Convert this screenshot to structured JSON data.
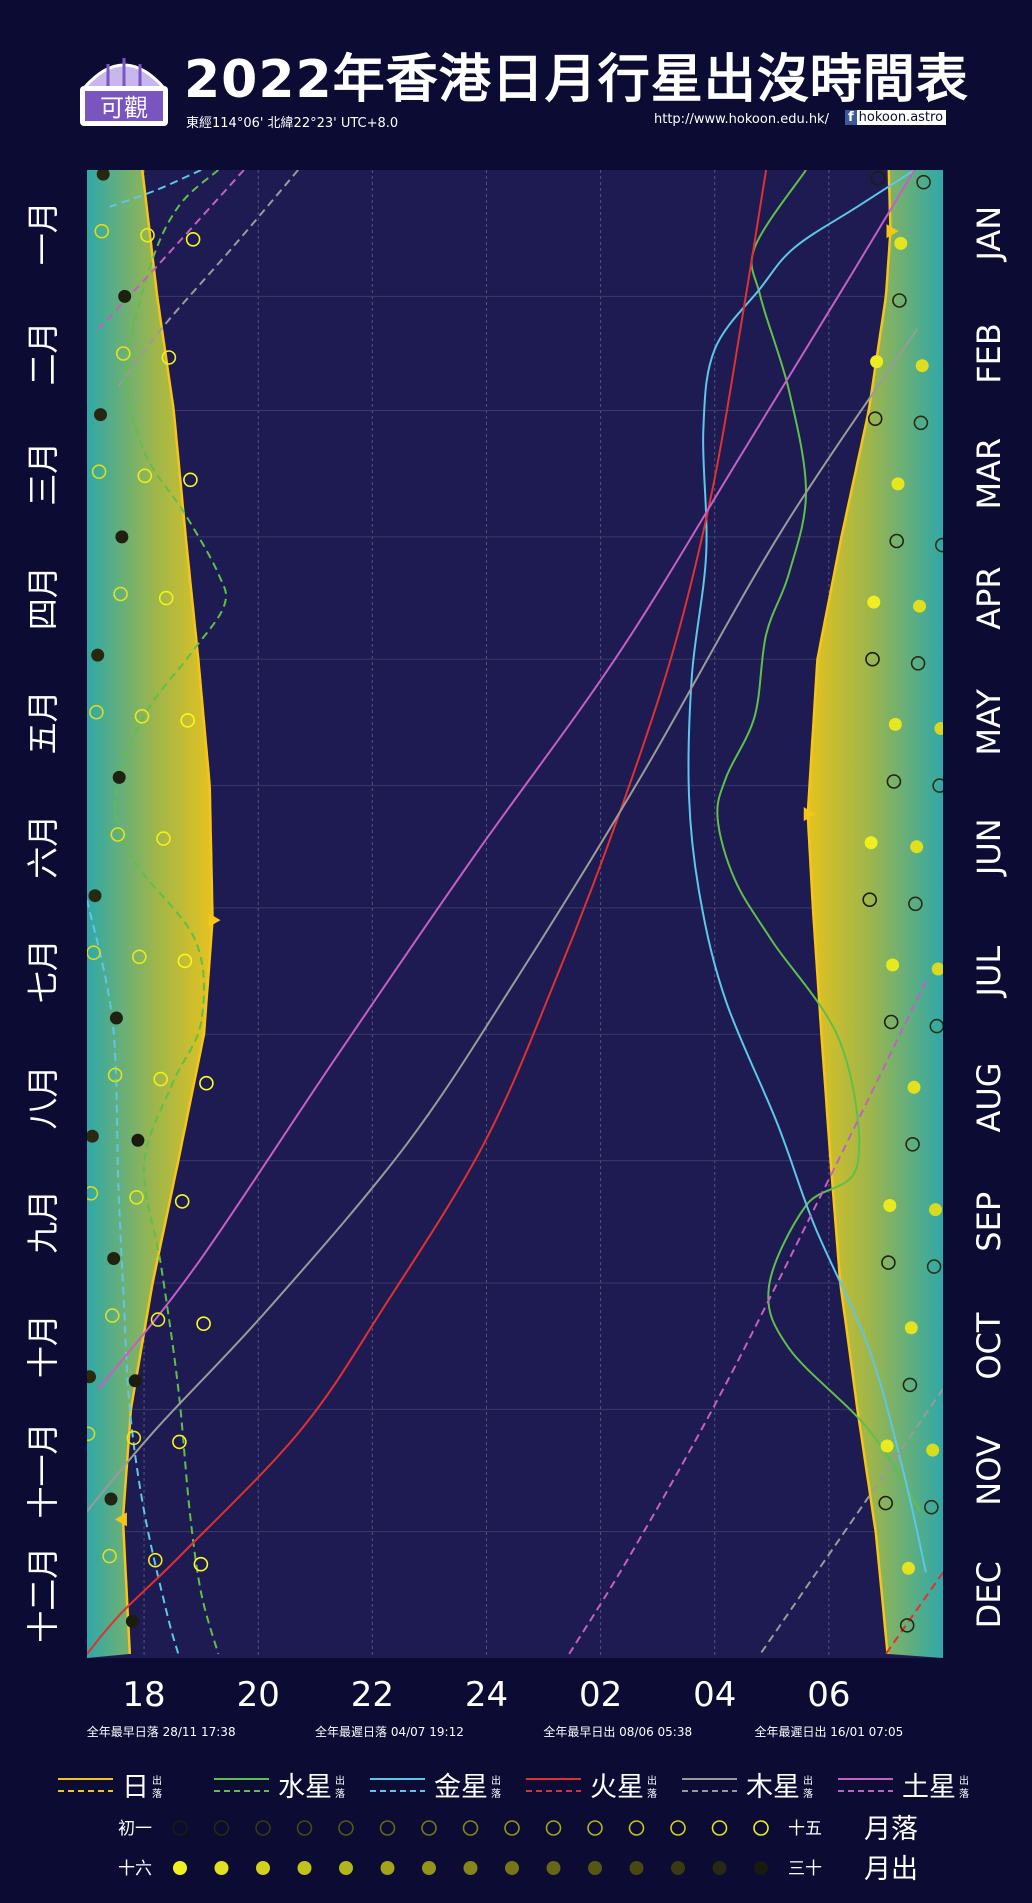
{
  "header": {
    "title": "2022年香港日月行星出沒時間表",
    "coords": "東經114°06'  北緯22°23'  UTC+8.0",
    "url": "http://www.hokoon.edu.hk/",
    "facebook": "hokoon.astro",
    "logo_text": "可觀"
  },
  "colors": {
    "background": "#0b0b33",
    "night_area": "#1d1b52",
    "sun": "#f5c518",
    "mercury": "#5fbf4a",
    "venus": "#5ec6e6",
    "mars": "#e03030",
    "jupiter": "#9a9a9a",
    "saturn": "#c45fc4",
    "moon_bright": "#f0f020",
    "moon_dark": "#1a1a10"
  },
  "chart_data": {
    "type": "line",
    "title": "2022年香港日月行星出沒時間表",
    "x_ticks": [
      "18",
      "20",
      "22",
      "24",
      "02",
      "04",
      "06"
    ],
    "x_tick_hours": [
      18,
      20,
      22,
      24,
      26,
      28,
      30
    ],
    "xlim_hours": [
      17,
      32
    ],
    "months_zh": [
      "一月",
      "二月",
      "三月",
      "四月",
      "五月",
      "六月",
      "七月",
      "八月",
      "九月",
      "十月",
      "十一月",
      "十二月"
    ],
    "months_en": [
      "JAN",
      "FEB",
      "MAR",
      "APR",
      "MAY",
      "JUN",
      "JUL",
      "AUG",
      "SEP",
      "OCT",
      "NOV",
      "DEC"
    ],
    "month_days": [
      31,
      28,
      31,
      30,
      31,
      30,
      31,
      31,
      30,
      31,
      30,
      31
    ],
    "extremes": [
      "全年最早日落 28/11 17:38",
      "全年最遲日落 04/07 19:12",
      "全年最早日出 08/06 05:38",
      "全年最遲日出 16/01 07:05"
    ],
    "sunset": [
      [
        1,
        17.97
      ],
      [
        32,
        18.23
      ],
      [
        60,
        18.52
      ],
      [
        91,
        18.73
      ],
      [
        121,
        18.95
      ],
      [
        152,
        19.15
      ],
      [
        185,
        19.2
      ],
      [
        213,
        19.05
      ],
      [
        244,
        18.6
      ],
      [
        274,
        18.15
      ],
      [
        305,
        17.77
      ],
      [
        332,
        17.63
      ],
      [
        365,
        17.75
      ]
    ],
    "sunrise": [
      [
        1,
        31.05
      ],
      [
        16,
        31.08
      ],
      [
        32,
        31.0
      ],
      [
        60,
        30.7
      ],
      [
        91,
        30.22
      ],
      [
        121,
        29.8
      ],
      [
        159,
        29.63
      ],
      [
        182,
        29.72
      ],
      [
        213,
        29.87
      ],
      [
        244,
        30.03
      ],
      [
        274,
        30.2
      ],
      [
        305,
        30.5
      ],
      [
        335,
        30.82
      ],
      [
        365,
        31.03
      ]
    ],
    "mercury_rise": [
      [
        1,
        29.6
      ],
      [
        20,
        28.7
      ],
      [
        32,
        28.8
      ],
      [
        55,
        29.3
      ],
      [
        80,
        29.6
      ],
      [
        100,
        29.3
      ],
      [
        115,
        28.9
      ],
      [
        135,
        28.7
      ],
      [
        150,
        28.2
      ],
      [
        160,
        28.05
      ],
      [
        175,
        28.35
      ],
      [
        190,
        29.0
      ],
      [
        215,
        30.2
      ],
      [
        245,
        30.5
      ],
      [
        255,
        29.6
      ],
      [
        275,
        28.95
      ],
      [
        290,
        29.3
      ],
      [
        310,
        30.7
      ],
      [
        330,
        31.6
      ]
    ],
    "mercury_set": [
      [
        1,
        19.3
      ],
      [
        10,
        18.6
      ],
      [
        25,
        18.1
      ],
      [
        50,
        17.7
      ],
      [
        70,
        18.0
      ],
      [
        85,
        18.7
      ],
      [
        100,
        19.3
      ],
      [
        108,
        19.4
      ],
      [
        120,
        18.8
      ],
      [
        135,
        18.0
      ],
      [
        155,
        17.5
      ],
      [
        170,
        17.8
      ],
      [
        190,
        18.9
      ],
      [
        210,
        19.0
      ],
      [
        225,
        18.5
      ],
      [
        245,
        18.0
      ],
      [
        270,
        18.3
      ],
      [
        300,
        18.6
      ],
      [
        330,
        18.8
      ],
      [
        350,
        19.0
      ],
      [
        365,
        19.3
      ]
    ],
    "venus_rise": [
      [
        1,
        31.5
      ],
      [
        10,
        30.5
      ],
      [
        20,
        29.4
      ],
      [
        30,
        28.8
      ],
      [
        45,
        28.0
      ],
      [
        65,
        27.8
      ],
      [
        95,
        27.85
      ],
      [
        125,
        27.6
      ],
      [
        155,
        27.55
      ],
      [
        180,
        27.75
      ],
      [
        205,
        28.2
      ],
      [
        235,
        29.1
      ],
      [
        260,
        29.75
      ],
      [
        290,
        30.7
      ],
      [
        320,
        31.3
      ],
      [
        345,
        31.7
      ]
    ],
    "venus_set": [
      [
        1,
        19.0
      ],
      [
        6,
        18.2
      ],
      [
        10,
        17.4
      ]
    ],
    "venus_set_b": [
      [
        180,
        17.0
      ],
      [
        210,
        17.45
      ],
      [
        250,
        17.55
      ],
      [
        280,
        17.65
      ],
      [
        305,
        17.75
      ],
      [
        330,
        18.0
      ],
      [
        355,
        18.4
      ],
      [
        365,
        18.6
      ]
    ],
    "mars_rise": [
      [
        1,
        28.9
      ],
      [
        40,
        28.45
      ],
      [
        80,
        27.95
      ],
      [
        120,
        27.25
      ],
      [
        160,
        26.3
      ],
      [
        200,
        25.2
      ],
      [
        240,
        23.95
      ],
      [
        280,
        22.2
      ],
      [
        310,
        20.75
      ],
      [
        340,
        18.7
      ],
      [
        355,
        17.6
      ],
      [
        365,
        17.0
      ]
    ],
    "mars_set": [
      [
        345,
        32.0
      ],
      [
        365,
        31.0
      ]
    ],
    "jupiter_set": [
      [
        1,
        20.7
      ],
      [
        20,
        19.55
      ],
      [
        40,
        18.3
      ],
      [
        55,
        17.5
      ]
    ],
    "jupiter_rise": [
      [
        40,
        31.55
      ],
      [
        90,
        29.15
      ],
      [
        150,
        26.7
      ],
      [
        200,
        24.5
      ],
      [
        240,
        22.6
      ],
      [
        280,
        20.2
      ],
      [
        310,
        18.2
      ],
      [
        330,
        17.0
      ]
    ],
    "jupiter_set_b": [
      [
        300,
        32.0
      ],
      [
        365,
        28.8
      ]
    ],
    "saturn_set": [
      [
        1,
        19.75
      ],
      [
        25,
        18.2
      ],
      [
        40,
        17.2
      ]
    ],
    "saturn_rise": [
      [
        1,
        31.5
      ],
      [
        30,
        30.25
      ],
      [
        70,
        28.5
      ],
      [
        120,
        26.3
      ],
      [
        170,
        23.75
      ],
      [
        220,
        21.3
      ],
      [
        270,
        18.9
      ],
      [
        300,
        17.2
      ]
    ],
    "saturn_set_b": [
      [
        200,
        31.7
      ],
      [
        250,
        29.95
      ],
      [
        300,
        28.15
      ],
      [
        340,
        26.55
      ],
      [
        365,
        25.45
      ]
    ],
    "moon_note": "moon rise (filled) and set (open) markers; shade follows lunar phase"
  },
  "legend": {
    "sun": "日",
    "mercury": "水星",
    "venus": "金星",
    "mars": "火星",
    "jupiter": "木星",
    "saturn": "土星",
    "rise_small": "出",
    "set_small": "落",
    "moon_set_start": "初一",
    "moon_set_end": "十五",
    "moon_set_label": "月落",
    "moon_rise_start": "十六",
    "moon_rise_end": "三十",
    "moon_rise_label": "月出"
  }
}
